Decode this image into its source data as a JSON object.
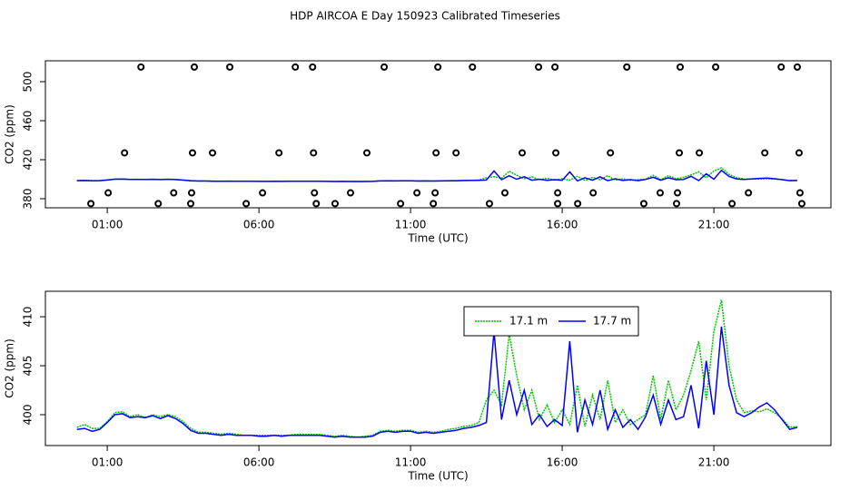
{
  "chart_data": [
    {
      "type": "scatter",
      "title": "HDP AIRCOA E  Day 150923  Calibrated Timeseries",
      "ylabel": "CO2 (ppm)",
      "xlabel": "Time (UTC)",
      "color": "#000000",
      "x": [
        2.11,
        3.87,
        5.04,
        7.2,
        7.77,
        10.13,
        11.9,
        13.04,
        15.22,
        15.76,
        18.13,
        19.89,
        21.06,
        23.22,
        23.75,
        1.57,
        3.81,
        4.47,
        6.66,
        7.8,
        9.56,
        11.84,
        12.5,
        14.68,
        15.79,
        17.59,
        19.86,
        20.52,
        22.68,
        23.81,
        1.03,
        3.19,
        3.78,
        6.12,
        7.83,
        9.02,
        11.21,
        11.81,
        14.11,
        15.85,
        17.02,
        19.23,
        19.8,
        22.14,
        23.84,
        0.46,
        2.68,
        3.75,
        5.58,
        7.89,
        8.51,
        10.67,
        11.75,
        13.6,
        15.85,
        16.51,
        18.69,
        19.77,
        21.6,
        23.9
      ],
      "y": [
        515,
        515,
        515,
        515,
        515,
        515,
        515,
        515,
        515,
        515,
        515,
        515,
        515,
        515,
        515,
        427,
        427,
        427,
        427,
        427,
        427,
        427,
        427,
        427,
        427,
        427,
        427,
        427,
        427,
        427,
        386,
        386,
        386,
        386,
        386,
        386,
        386,
        386,
        386,
        386,
        386,
        386,
        386,
        386,
        386,
        375,
        375,
        375,
        375,
        375,
        375,
        375,
        375,
        375,
        375,
        375,
        375,
        375,
        375,
        375
      ],
      "xlim": [
        -1.04,
        24.86
      ],
      "ylim": [
        370.7,
        521.4
      ],
      "xticks": [
        {
          "value": 1,
          "label": "01:00"
        },
        {
          "value": 6,
          "label": "06:00"
        },
        {
          "value": 11,
          "label": "11:00"
        },
        {
          "value": 16,
          "label": "16:00"
        },
        {
          "value": 21,
          "label": "21:00"
        }
      ],
      "yticks": [
        380,
        420,
        460,
        500
      ]
    },
    {
      "type": "line",
      "ylabel": "CO2 (ppm)",
      "xlabel": "Time (UTC)",
      "legend": "top",
      "x": [
        0,
        0.25,
        0.5,
        0.75,
        1,
        1.25,
        1.5,
        1.75,
        2,
        2.25,
        2.5,
        2.75,
        3,
        3.25,
        3.5,
        3.75,
        4,
        4.25,
        4.5,
        4.75,
        5,
        5.25,
        5.5,
        5.75,
        6,
        6.25,
        6.5,
        6.75,
        7,
        7.25,
        7.5,
        7.75,
        8,
        8.25,
        8.5,
        8.75,
        9,
        9.25,
        9.5,
        9.75,
        10,
        10.25,
        10.5,
        10.75,
        11,
        11.25,
        11.5,
        11.75,
        12,
        12.25,
        12.5,
        12.75,
        13,
        13.25,
        13.5,
        13.75,
        14,
        14.25,
        14.5,
        14.75,
        15,
        15.25,
        15.5,
        15.75,
        16,
        16.25,
        16.5,
        16.75,
        17,
        17.25,
        17.5,
        17.75,
        18,
        18.25,
        18.5,
        18.75,
        19,
        19.25,
        19.5,
        19.75,
        20,
        20.25,
        20.5,
        20.75,
        21,
        21.25,
        21.5,
        21.75,
        22,
        22.25,
        22.5,
        22.75,
        23,
        23.25,
        23.5,
        23.75
      ],
      "series": [
        {
          "name": "17.1 m",
          "color": "#00c800",
          "dashed": true,
          "values": [
            398.7,
            399.0,
            398.6,
            398.6,
            399.3,
            400.2,
            400.3,
            399.8,
            400.0,
            399.7,
            400.0,
            399.8,
            400.0,
            399.8,
            399.3,
            398.6,
            398.2,
            398.2,
            398.1,
            398.0,
            398.1,
            398.0,
            397.9,
            397.9,
            397.9,
            397.9,
            397.9,
            397.9,
            397.9,
            398.0,
            398.0,
            398.0,
            398.0,
            397.9,
            397.8,
            397.9,
            397.8,
            397.7,
            397.8,
            397.9,
            398.3,
            398.4,
            398.3,
            398.4,
            398.4,
            398.2,
            398.3,
            398.2,
            398.3,
            398.5,
            398.6,
            398.8,
            398.9,
            399.2,
            401.5,
            402.5,
            401,
            408.2,
            404,
            400.5,
            402.5,
            399.5,
            401,
            399.2,
            400.5,
            399,
            403,
            398.8,
            402,
            399.5,
            403.5,
            399.2,
            400.5,
            399,
            399.5,
            400,
            404,
            399.5,
            403.5,
            400.5,
            402,
            404.5,
            407.5,
            401.5,
            408.5,
            411.7,
            405,
            401.5,
            400.2,
            400.4,
            400.3,
            400.6,
            400.2,
            399.6,
            398.7,
            398.8
          ]
        },
        {
          "name": "17.7 m",
          "color": "#0000ff",
          "dashed": false,
          "values": [
            398.5,
            398.6,
            398.3,
            398.5,
            399.2,
            400.0,
            400.1,
            399.7,
            399.8,
            399.7,
            399.9,
            399.6,
            399.9,
            399.6,
            399.1,
            398.4,
            398.1,
            398.1,
            398.0,
            397.9,
            398.0,
            397.9,
            397.9,
            397.9,
            397.8,
            397.8,
            397.9,
            397.8,
            397.9,
            397.9,
            397.9,
            397.9,
            397.9,
            397.8,
            397.7,
            397.8,
            397.7,
            397.7,
            397.7,
            397.8,
            398.2,
            398.3,
            398.2,
            398.3,
            398.3,
            398.1,
            398.2,
            398.1,
            398.2,
            398.3,
            398.4,
            398.6,
            398.7,
            398.9,
            399.2,
            408.5,
            399.5,
            403.5,
            400,
            402.5,
            399,
            400,
            398.8,
            399.5,
            398.9,
            407.5,
            398.2,
            401.5,
            399,
            402.5,
            398.5,
            400.5,
            398.7,
            399.5,
            398.5,
            399.8,
            402,
            399,
            401.5,
            399.5,
            399.8,
            403,
            398.6,
            405.5,
            400,
            409,
            403,
            400.2,
            399.8,
            400.2,
            400.8,
            401.2,
            400.5,
            399.5,
            398.5,
            398.7
          ]
        }
      ],
      "xlim": [
        -1.04,
        24.86
      ],
      "ylim": [
        396.85,
        412.6
      ],
      "xticks": [
        {
          "value": 1,
          "label": "01:00"
        },
        {
          "value": 6,
          "label": "06:00"
        },
        {
          "value": 11,
          "label": "11:00"
        },
        {
          "value": 16,
          "label": "16:00"
        },
        {
          "value": 21,
          "label": "21:00"
        }
      ],
      "yticks": [
        400,
        405,
        410
      ]
    }
  ]
}
